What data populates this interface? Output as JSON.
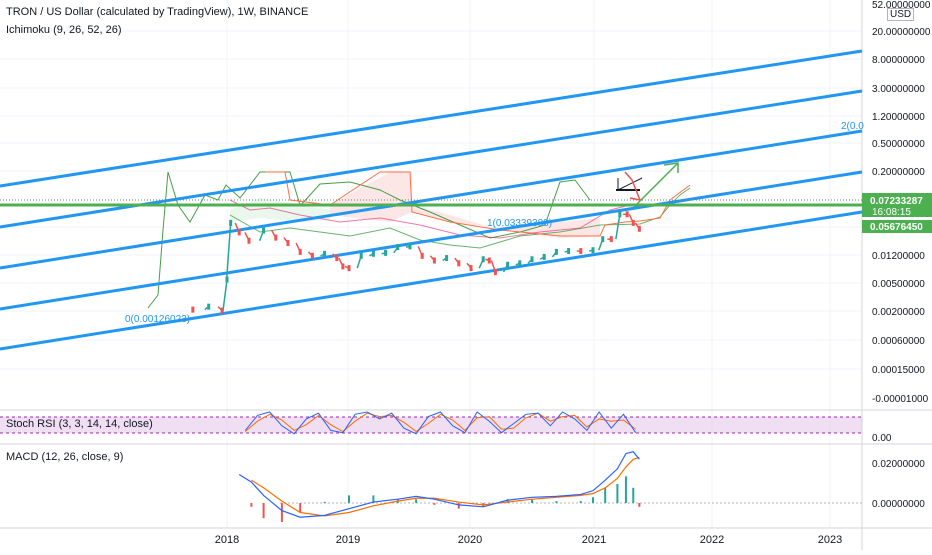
{
  "header": {
    "title": "TRON / US Dollar (calculated by TradingView), 1W, BINANCE",
    "indicator": "Ichimoku (9, 26, 52, 26)",
    "currency": "USD"
  },
  "panes": {
    "stoch_label": "Stoch RSI (3, 3, 14, 14, close)",
    "macd_label": "MACD (12, 26, close, 9)"
  },
  "colors": {
    "channel": "#2196f3",
    "support": "#4caf50",
    "bull": "#26a69a",
    "bear": "#ef5350",
    "ichimoku_lead": "#43a047",
    "ichimoku_lag": "#ff7043",
    "stoch_k": "#2962ff",
    "stoch_d": "#ff6d00",
    "stoch_band": "#e1bee7",
    "macd_line": "#2962ff",
    "signal_line": "#ff6d00"
  },
  "chart_data": {
    "type": "line",
    "symbol": "TRXUSD",
    "timeframe": "1W",
    "exchange": "BINANCE",
    "x_axis_ticks": [
      "2018",
      "2019",
      "2020",
      "2021",
      "2022",
      "2023"
    ],
    "y_axis_ticks": [
      "52.00000000",
      "20.00000000",
      "8.00000000",
      "3.00000000",
      "1.20000000",
      "0.50000000",
      "0.20000000",
      "0.07233287",
      "16:08:15",
      "0.05676450",
      "0.01200000",
      "0.00500000",
      "0.00200000",
      "0.00060000",
      "0.00015000",
      "-0.00001000"
    ],
    "y_scale": "log",
    "price_badges": [
      {
        "label": "0.07233287",
        "sub": "16:08:15",
        "kind": "last-price"
      },
      {
        "label": "0.05676450",
        "kind": "support-level"
      }
    ],
    "channel_labels": [
      "0(0.00126023)",
      "1(0.03339388)",
      "2(0.0"
    ],
    "support_level": 0.0567645,
    "last_price": 0.07233287,
    "close_series": {
      "x": [
        2017.72,
        2017.85,
        2017.96,
        2018.0,
        2018.03,
        2018.1,
        2018.18,
        2018.3,
        2018.4,
        2018.5,
        2018.6,
        2018.7,
        2018.8,
        2018.9,
        2018.95,
        2019.0,
        2019.1,
        2019.2,
        2019.3,
        2019.4,
        2019.5,
        2019.6,
        2019.7,
        2019.8,
        2019.9,
        2020.0,
        2020.1,
        2020.15,
        2020.2,
        2020.3,
        2020.4,
        2020.5,
        2020.6,
        2020.7,
        2020.8,
        2020.9,
        2021.0,
        2021.08,
        2021.15,
        2021.22,
        2021.28,
        2021.33,
        2021.38
      ],
      "y": [
        0.0022,
        0.0025,
        0.0021,
        0.008,
        0.09,
        0.06,
        0.042,
        0.065,
        0.048,
        0.038,
        0.026,
        0.022,
        0.024,
        0.02,
        0.014,
        0.013,
        0.022,
        0.024,
        0.025,
        0.032,
        0.033,
        0.022,
        0.018,
        0.02,
        0.016,
        0.013,
        0.019,
        0.018,
        0.011,
        0.015,
        0.016,
        0.019,
        0.021,
        0.026,
        0.027,
        0.027,
        0.028,
        0.045,
        0.045,
        0.13,
        0.13,
        0.09,
        0.07
      ]
    },
    "stoch_rsi": {
      "y_ticks": [
        "0.00"
      ],
      "k": {
        "x": [
          2018.15,
          2018.25,
          2018.35,
          2018.45,
          2018.55,
          2018.65,
          2018.75,
          2018.85,
          2018.95,
          2019.05,
          2019.15,
          2019.25,
          2019.35,
          2019.45,
          2019.55,
          2019.65,
          2019.75,
          2019.85,
          2019.95,
          2020.05,
          2020.15,
          2020.25,
          2020.35,
          2020.45,
          2020.55,
          2020.65,
          2020.75,
          2020.85,
          2020.95,
          2021.05,
          2021.15,
          2021.25,
          2021.35
        ],
        "y": [
          20,
          85,
          100,
          40,
          5,
          70,
          95,
          20,
          10,
          90,
          100,
          70,
          95,
          30,
          5,
          80,
          100,
          40,
          10,
          100,
          60,
          10,
          50,
          90,
          95,
          40,
          100,
          70,
          20,
          100,
          30,
          90,
          10
        ]
      },
      "d": {
        "x": [
          2018.15,
          2018.25,
          2018.35,
          2018.45,
          2018.55,
          2018.65,
          2018.75,
          2018.85,
          2018.95,
          2019.05,
          2019.15,
          2019.25,
          2019.35,
          2019.45,
          2019.55,
          2019.65,
          2019.75,
          2019.85,
          2019.95,
          2020.05,
          2020.15,
          2020.25,
          2020.35,
          2020.45,
          2020.55,
          2020.65,
          2020.75,
          2020.85,
          2020.95,
          2021.05,
          2021.15,
          2021.25,
          2021.35
        ],
        "y": [
          15,
          60,
          90,
          65,
          20,
          45,
          85,
          45,
          15,
          60,
          95,
          80,
          85,
          55,
          15,
          50,
          90,
          65,
          20,
          75,
          80,
          25,
          30,
          75,
          95,
          60,
          80,
          85,
          35,
          70,
          60,
          65,
          25
        ]
      }
    },
    "macd": {
      "y_ticks": [
        "0.02000000",
        "0.00000000"
      ],
      "macd_line": {
        "x": [
          2018.1,
          2018.2,
          2018.3,
          2018.45,
          2018.6,
          2018.8,
          2019.0,
          2019.2,
          2019.4,
          2019.55,
          2019.7,
          2019.9,
          2020.1,
          2020.3,
          2020.5,
          2020.7,
          2020.9,
          2021.0,
          2021.1,
          2021.2,
          2021.27,
          2021.33,
          2021.38
        ],
        "y": [
          0.015,
          0.011,
          0.004,
          -0.004,
          -0.0075,
          -0.0065,
          -0.003,
          0.0005,
          0.002,
          0.0035,
          0.002,
          -0.001,
          -0.002,
          0.0015,
          0.003,
          0.0035,
          0.0045,
          0.0065,
          0.012,
          0.018,
          0.026,
          0.027,
          0.023
        ]
      },
      "signal_line": {
        "x": [
          2018.2,
          2018.3,
          2018.45,
          2018.6,
          2018.8,
          2019.0,
          2019.2,
          2019.4,
          2019.55,
          2019.7,
          2019.9,
          2020.1,
          2020.3,
          2020.5,
          2020.7,
          2020.9,
          2021.0,
          2021.1,
          2021.2,
          2021.27,
          2021.33,
          2021.38
        ],
        "y": [
          0.012,
          0.008,
          0.001,
          -0.005,
          -0.0068,
          -0.005,
          -0.0015,
          0.001,
          0.0025,
          0.0025,
          0.0005,
          -0.001,
          0.0005,
          0.002,
          0.003,
          0.004,
          0.005,
          0.008,
          0.013,
          0.019,
          0.023,
          0.024
        ]
      }
    }
  }
}
